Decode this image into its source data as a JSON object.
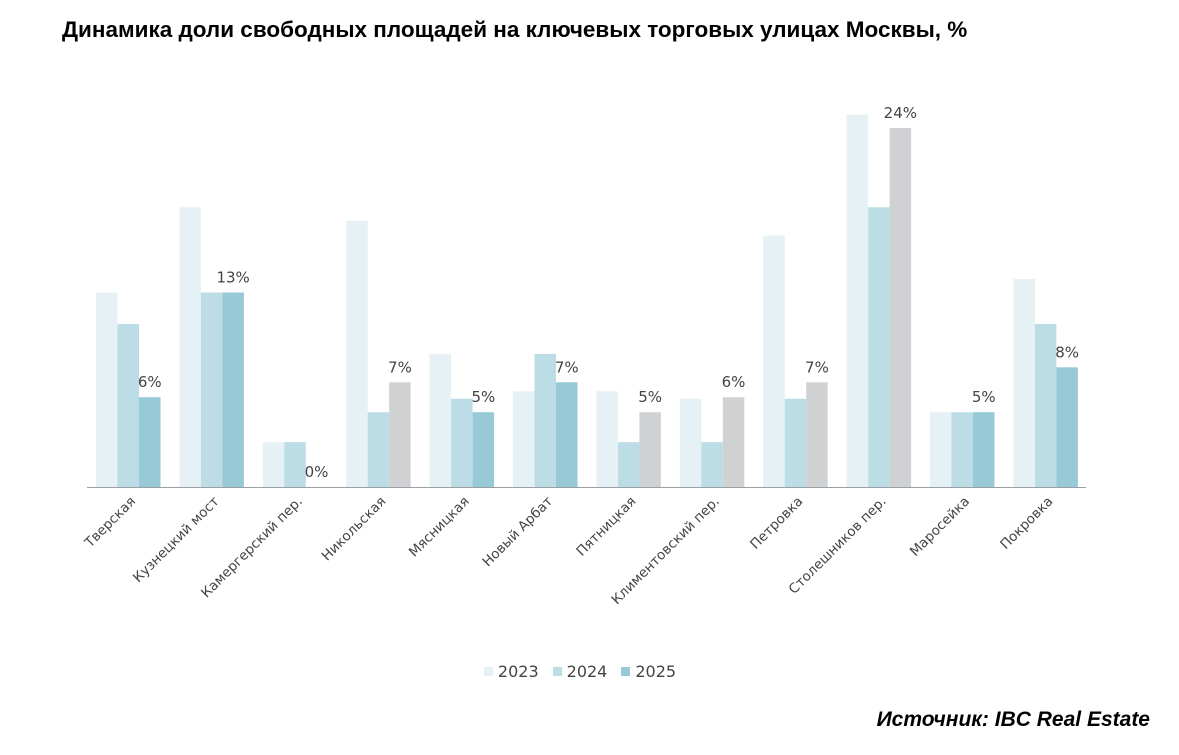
{
  "chart_data": {
    "type": "bar",
    "title": "Динамика доли свободных площадей на ключевых торговых улицах Москвы, %",
    "xlabel": "",
    "ylabel": "",
    "ylim": [
      0,
      25
    ],
    "grid": false,
    "legend_position": "bottom-center",
    "categories": [
      "Тверская",
      "Кузнецкий мост",
      "Камергерский пер.",
      "Никольская",
      "Мясницкая",
      "Новый Арбат",
      "Пятницкая",
      "Климентовский пер.",
      "Петровка",
      "Столешников пер.",
      "Маросейка",
      "Покровка"
    ],
    "series": [
      {
        "name": "2023",
        "values": [
          13,
          18.7,
          3,
          17.8,
          8.9,
          6.4,
          6.4,
          5.9,
          16.8,
          24.9,
          5,
          13.9
        ]
      },
      {
        "name": "2024",
        "values": [
          10.9,
          13,
          3,
          5,
          5.9,
          8.9,
          3,
          3,
          5.9,
          18.7,
          5,
          10.9
        ]
      },
      {
        "name": "2025",
        "values": [
          6,
          13,
          0,
          7,
          5,
          7,
          5,
          6,
          7,
          24,
          5,
          8
        ]
      }
    ],
    "data_labels": [
      "6%",
      "13%",
      "0%",
      "7%",
      "5%",
      "7%",
      "5%",
      "6%",
      "7%",
      "24%",
      "5%",
      "8%"
    ],
    "highlight_2025_grey": [
      false,
      false,
      false,
      true,
      false,
      false,
      true,
      true,
      true,
      true,
      false,
      false
    ]
  },
  "colors": {
    "y2023": "#e6f1f6",
    "y2024": "#bcdde6",
    "y2025": "#97c9d6",
    "grey": "#d0d1d3",
    "axis": "#9aa0a3",
    "label": "#444444"
  },
  "legend": {
    "items": [
      {
        "label": "2023",
        "color": "#e6f1f6"
      },
      {
        "label": "2024",
        "color": "#bcdde6"
      },
      {
        "label": "2025",
        "color": "#97c9d6"
      }
    ]
  },
  "source": "Источник: IBC Real Estate"
}
